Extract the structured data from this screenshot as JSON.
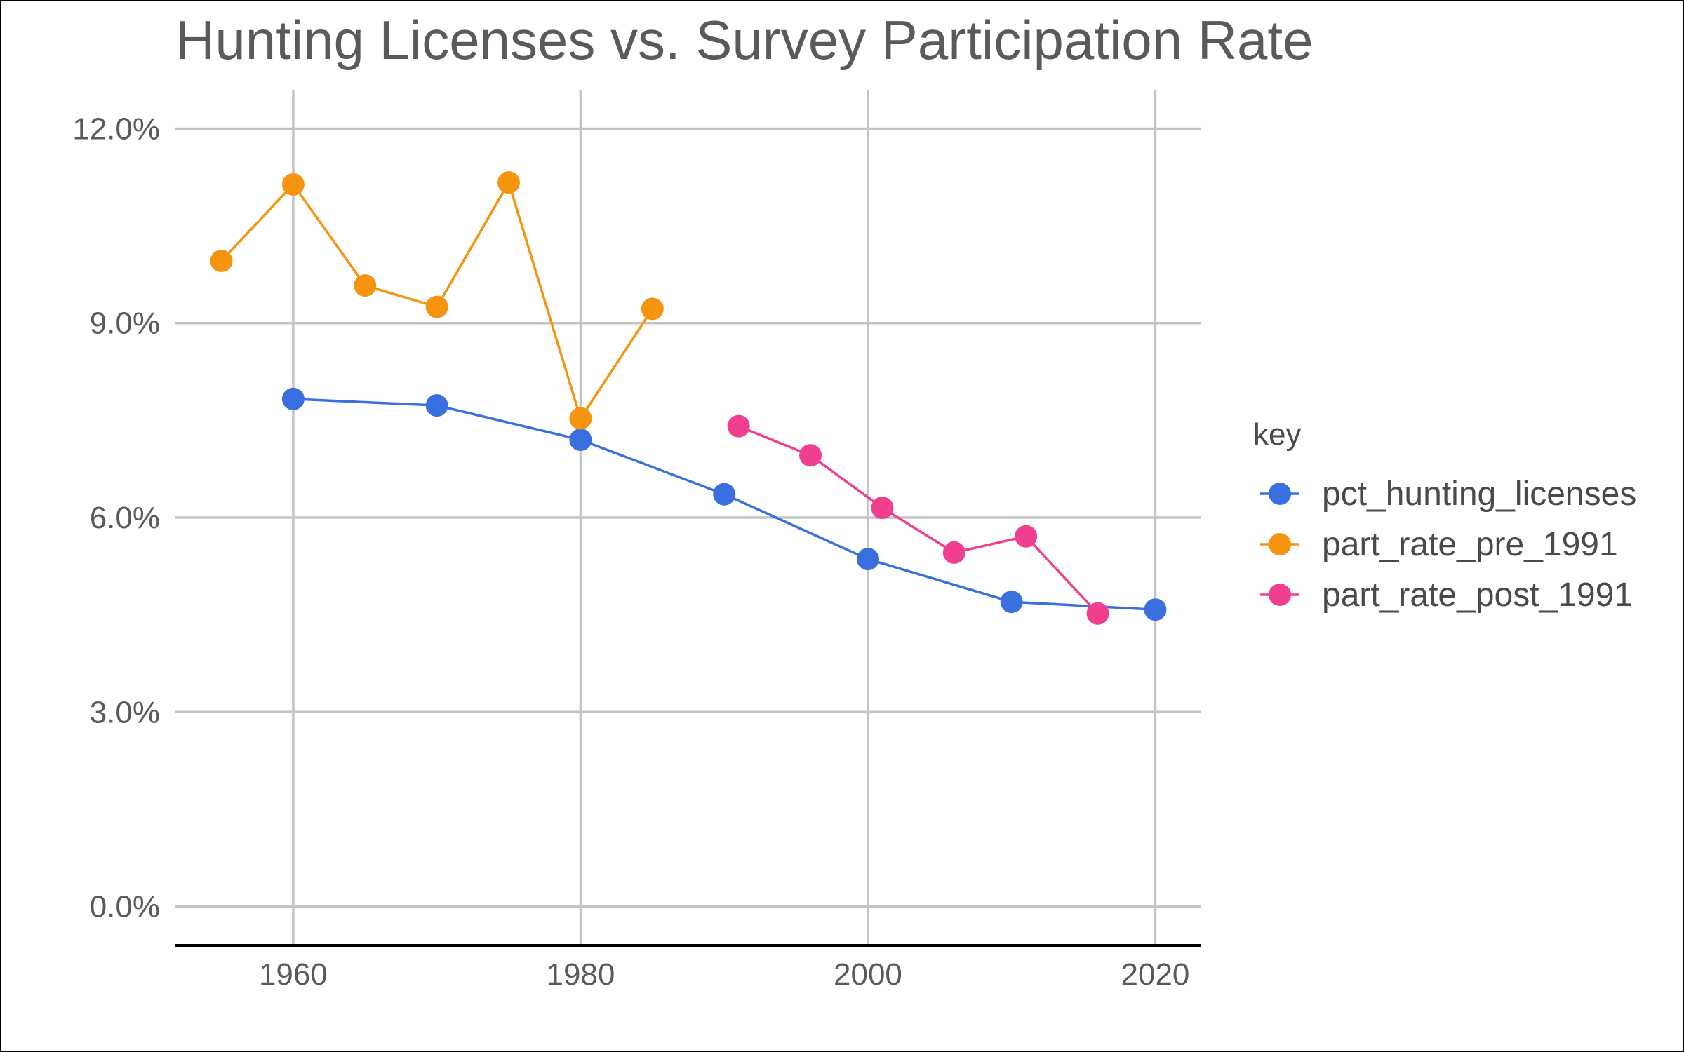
{
  "chart_data": {
    "type": "line",
    "title": "Hunting Licenses vs. Survey Participation Rate",
    "xlabel": "",
    "ylabel": "",
    "xlim": [
      1951.8,
      2023.2
    ],
    "ylim": [
      -0.6,
      12.6
    ],
    "x_ticks": [
      1960,
      1980,
      2000,
      2020
    ],
    "x_tick_labels": [
      "1960",
      "1980",
      "2000",
      "2020"
    ],
    "y_ticks": [
      0,
      3,
      6,
      9,
      12
    ],
    "y_tick_labels": [
      "0.0%",
      "3.0%",
      "6.0%",
      "9.0%",
      "12.0%"
    ],
    "grid": true,
    "legend_title": "key",
    "legend_position": "right",
    "series": [
      {
        "name": "pct_hunting_licenses",
        "color": "#3a6fe0",
        "points": [
          [
            1960,
            7.83
          ],
          [
            1970,
            7.73
          ],
          [
            1980,
            7.2
          ],
          [
            1990,
            6.36
          ],
          [
            2000,
            5.36
          ],
          [
            2010,
            4.7
          ],
          [
            2020,
            4.58
          ]
        ]
      },
      {
        "name": "part_rate_pre_1991",
        "color": "#f5940f",
        "points": [
          [
            1955,
            9.96
          ],
          [
            1960,
            11.14
          ],
          [
            1965,
            9.58
          ],
          [
            1970,
            9.25
          ],
          [
            1975,
            11.17
          ],
          [
            1980,
            7.53
          ],
          [
            1985,
            9.22
          ]
        ]
      },
      {
        "name": "part_rate_post_1991",
        "color": "#ef3f8e",
        "points": [
          [
            1991,
            7.41
          ],
          [
            1996,
            6.96
          ],
          [
            2001,
            6.15
          ],
          [
            2006,
            5.46
          ],
          [
            2011,
            5.71
          ],
          [
            2016,
            4.52
          ]
        ]
      }
    ]
  }
}
